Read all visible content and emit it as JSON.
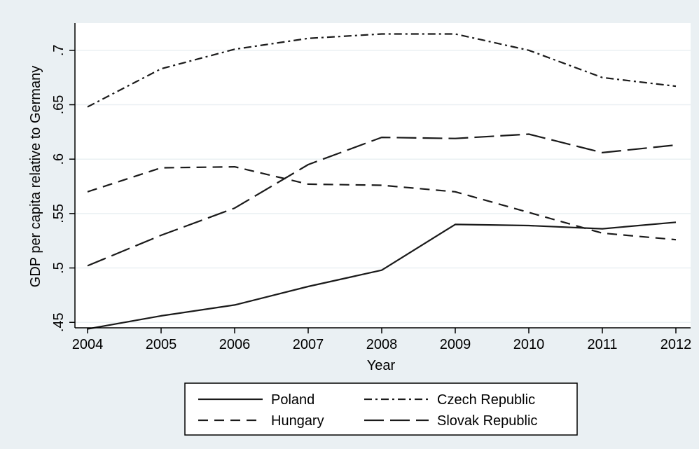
{
  "chart_data": {
    "type": "line",
    "xlabel": "Year",
    "ylabel": "GDP per capita relative to Germany",
    "x": [
      2004,
      2005,
      2006,
      2007,
      2008,
      2009,
      2010,
      2011,
      2012
    ],
    "x_tick_labels": [
      "2004",
      "2005",
      "2006",
      "2007",
      "2008",
      "2009",
      "2010",
      "2011",
      "2012"
    ],
    "y_ticks": [
      0.45,
      0.5,
      0.55,
      0.6,
      0.65,
      0.7
    ],
    "y_tick_labels": [
      ".45",
      ".5",
      ".55",
      ".6",
      ".65",
      ".7"
    ],
    "ylim": [
      0.445,
      0.725
    ],
    "xlim": [
      2004,
      2012
    ],
    "grid": "horizontal",
    "legend_position": "bottom",
    "series": [
      {
        "name": "Poland",
        "dash": "solid",
        "values": [
          0.444,
          0.456,
          0.466,
          0.483,
          0.498,
          0.54,
          0.539,
          0.536,
          0.542
        ]
      },
      {
        "name": "Czech Republic",
        "dash": "dash-dot",
        "values": [
          0.648,
          0.683,
          0.701,
          0.711,
          0.715,
          0.715,
          0.7,
          0.675,
          0.667
        ]
      },
      {
        "name": "Hungary",
        "dash": "short-dash",
        "values": [
          0.57,
          0.592,
          0.593,
          0.577,
          0.576,
          0.57,
          0.551,
          0.532,
          0.526
        ]
      },
      {
        "name": "Slovak Republic",
        "dash": "long-dash",
        "values": [
          0.502,
          0.53,
          0.555,
          0.595,
          0.62,
          0.619,
          0.623,
          0.606,
          0.613
        ]
      }
    ]
  },
  "colors": {
    "background": "#eaf0f3",
    "plot_area": "#ffffff",
    "grid": "#eaf0f3",
    "line": "#1a1a1a"
  }
}
